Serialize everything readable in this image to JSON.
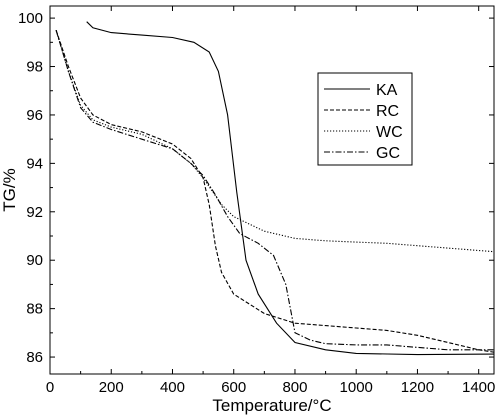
{
  "chart_data": {
    "type": "line",
    "xlabel": "Temperature/°C",
    "ylabel": "TG/%",
    "xlim": [
      0,
      1450
    ],
    "ylim": [
      85.3,
      100.5
    ],
    "xticks": [
      0,
      200,
      400,
      600,
      800,
      1000,
      1200,
      1400
    ],
    "yticks": [
      86,
      88,
      90,
      92,
      94,
      96,
      98,
      100
    ],
    "legend_position": "top-right",
    "grid": false,
    "series": [
      {
        "name": "KA",
        "line_style": "solid",
        "points": [
          [
            120,
            99.85
          ],
          [
            140,
            99.6
          ],
          [
            200,
            99.4
          ],
          [
            300,
            99.3
          ],
          [
            400,
            99.2
          ],
          [
            470,
            99.0
          ],
          [
            520,
            98.6
          ],
          [
            550,
            97.8
          ],
          [
            580,
            96.0
          ],
          [
            610,
            92.8
          ],
          [
            640,
            90.0
          ],
          [
            680,
            88.6
          ],
          [
            740,
            87.4
          ],
          [
            800,
            86.6
          ],
          [
            900,
            86.3
          ],
          [
            1000,
            86.15
          ],
          [
            1200,
            86.1
          ],
          [
            1450,
            86.12
          ]
        ]
      },
      {
        "name": "RC",
        "line_style": "dashed",
        "points": [
          [
            20,
            99.5
          ],
          [
            60,
            98.0
          ],
          [
            100,
            96.7
          ],
          [
            140,
            96.0
          ],
          [
            200,
            95.6
          ],
          [
            300,
            95.3
          ],
          [
            400,
            94.8
          ],
          [
            460,
            94.2
          ],
          [
            500,
            93.4
          ],
          [
            520,
            92.3
          ],
          [
            540,
            90.6
          ],
          [
            560,
            89.5
          ],
          [
            600,
            88.6
          ],
          [
            700,
            87.8
          ],
          [
            800,
            87.4
          ],
          [
            900,
            87.3
          ],
          [
            1000,
            87.2
          ],
          [
            1100,
            87.1
          ],
          [
            1200,
            86.9
          ],
          [
            1300,
            86.6
          ],
          [
            1400,
            86.3
          ],
          [
            1450,
            86.2
          ]
        ]
      },
      {
        "name": "WC",
        "line_style": "dotted",
        "points": [
          [
            20,
            99.5
          ],
          [
            60,
            97.8
          ],
          [
            100,
            96.4
          ],
          [
            140,
            95.8
          ],
          [
            200,
            95.5
          ],
          [
            300,
            95.2
          ],
          [
            400,
            94.6
          ],
          [
            460,
            94.0
          ],
          [
            500,
            93.4
          ],
          [
            560,
            92.3
          ],
          [
            600,
            91.8
          ],
          [
            700,
            91.2
          ],
          [
            800,
            90.9
          ],
          [
            900,
            90.8
          ],
          [
            1000,
            90.75
          ],
          [
            1100,
            90.7
          ],
          [
            1200,
            90.6
          ],
          [
            1300,
            90.5
          ],
          [
            1400,
            90.4
          ],
          [
            1450,
            90.35
          ]
        ]
      },
      {
        "name": "GC",
        "line_style": "dash-dot",
        "points": [
          [
            20,
            99.5
          ],
          [
            60,
            97.8
          ],
          [
            100,
            96.3
          ],
          [
            140,
            95.7
          ],
          [
            200,
            95.4
          ],
          [
            300,
            95.0
          ],
          [
            400,
            94.6
          ],
          [
            460,
            94.0
          ],
          [
            500,
            93.5
          ],
          [
            540,
            92.7
          ],
          [
            580,
            91.8
          ],
          [
            620,
            91.1
          ],
          [
            680,
            90.7
          ],
          [
            730,
            90.2
          ],
          [
            770,
            89.0
          ],
          [
            800,
            87.0
          ],
          [
            850,
            86.7
          ],
          [
            900,
            86.55
          ],
          [
            1000,
            86.5
          ],
          [
            1100,
            86.5
          ],
          [
            1200,
            86.4
          ],
          [
            1300,
            86.3
          ],
          [
            1450,
            86.3
          ]
        ]
      }
    ]
  }
}
